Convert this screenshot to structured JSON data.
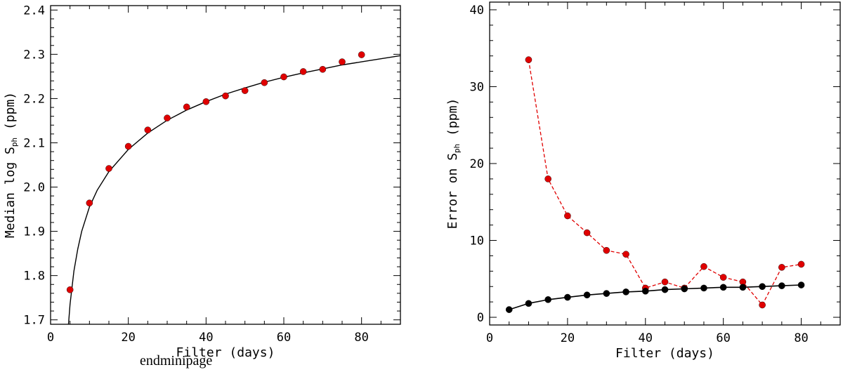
{
  "caption": "endminipage",
  "colors": {
    "red": "#e00000",
    "black": "#000000"
  },
  "chart_data": [
    {
      "type": "scatter",
      "xlabel": "Filter (days)",
      "ylabel": {
        "prefix": "Median log S",
        "sub": "ph",
        "suffix": " (ppm)"
      },
      "xlim": [
        0,
        90
      ],
      "ylim": [
        1.69,
        2.41
      ],
      "xticks": [
        {
          "value": 0,
          "label": "0"
        },
        {
          "value": 20,
          "label": "20"
        },
        {
          "value": 40,
          "label": "40"
        },
        {
          "value": 60,
          "label": "60"
        },
        {
          "value": 80,
          "label": "80"
        }
      ],
      "yticks": [
        {
          "value": 1.7,
          "label": "1.7"
        },
        {
          "value": 1.8,
          "label": "1.8"
        },
        {
          "value": 1.9,
          "label": "1.9"
        },
        {
          "value": 2.0,
          "label": "2.0"
        },
        {
          "value": 2.1,
          "label": "2.1"
        },
        {
          "value": 2.2,
          "label": "2.2"
        },
        {
          "value": 2.3,
          "label": "2.3"
        },
        {
          "value": 2.4,
          "label": "2.4"
        }
      ],
      "series": [
        {
          "name": "median",
          "color": "#e00000",
          "x": [
            5,
            10,
            15,
            20,
            25,
            30,
            35,
            40,
            45,
            50,
            55,
            60,
            65,
            70,
            75,
            80
          ],
          "y": [
            1.768,
            1.964,
            2.042,
            2.092,
            2.129,
            2.156,
            2.181,
            2.193,
            2.206,
            2.218,
            2.236,
            2.249,
            2.261,
            2.266,
            2.283,
            2.299
          ]
        }
      ],
      "fit": {
        "name": "fit",
        "color": "#000000",
        "x": [
          4.6,
          5,
          6,
          7,
          8,
          10,
          12,
          15,
          20,
          25,
          30,
          35,
          40,
          45,
          50,
          55,
          60,
          65,
          70,
          75,
          80,
          85,
          90
        ],
        "y": [
          1.69,
          1.735,
          1.81,
          1.86,
          1.9,
          1.955,
          1.993,
          2.035,
          2.085,
          2.122,
          2.151,
          2.174,
          2.193,
          2.21,
          2.224,
          2.237,
          2.248,
          2.258,
          2.267,
          2.276,
          2.283,
          2.29,
          2.297
        ]
      }
    },
    {
      "type": "line",
      "xlabel": "Filter (days)",
      "ylabel": {
        "prefix": "Error on S",
        "sub": "ph",
        "suffix": " (ppm)"
      },
      "xlim": [
        0,
        90
      ],
      "ylim": [
        -1,
        41
      ],
      "xticks": [
        {
          "value": 0,
          "label": "0"
        },
        {
          "value": 20,
          "label": "20"
        },
        {
          "value": 40,
          "label": "40"
        },
        {
          "value": 60,
          "label": "60"
        },
        {
          "value": 80,
          "label": "80"
        }
      ],
      "yticks": [
        {
          "value": 0,
          "label": "0"
        },
        {
          "value": 10,
          "label": "10"
        },
        {
          "value": 20,
          "label": "20"
        },
        {
          "value": 30,
          "label": "30"
        },
        {
          "value": 40,
          "label": "40"
        }
      ],
      "series": [
        {
          "name": "red-dashed",
          "color": "#e00000",
          "style": "dashed",
          "x": [
            10,
            15,
            20,
            25,
            30,
            35,
            40,
            45,
            50,
            55,
            60,
            65,
            70,
            75,
            80
          ],
          "y": [
            33.5,
            18.0,
            13.2,
            11.0,
            8.7,
            8.2,
            3.8,
            4.6,
            3.8,
            6.6,
            5.2,
            4.6,
            1.6,
            6.5,
            6.9
          ]
        },
        {
          "name": "black-solid",
          "color": "#000000",
          "style": "solid",
          "x": [
            5,
            10,
            15,
            20,
            25,
            30,
            35,
            40,
            45,
            50,
            55,
            60,
            65,
            70,
            75,
            80
          ],
          "y": [
            1.0,
            1.8,
            2.3,
            2.6,
            2.9,
            3.1,
            3.3,
            3.4,
            3.6,
            3.7,
            3.8,
            3.9,
            3.9,
            4.0,
            4.1,
            4.2
          ]
        }
      ]
    }
  ]
}
